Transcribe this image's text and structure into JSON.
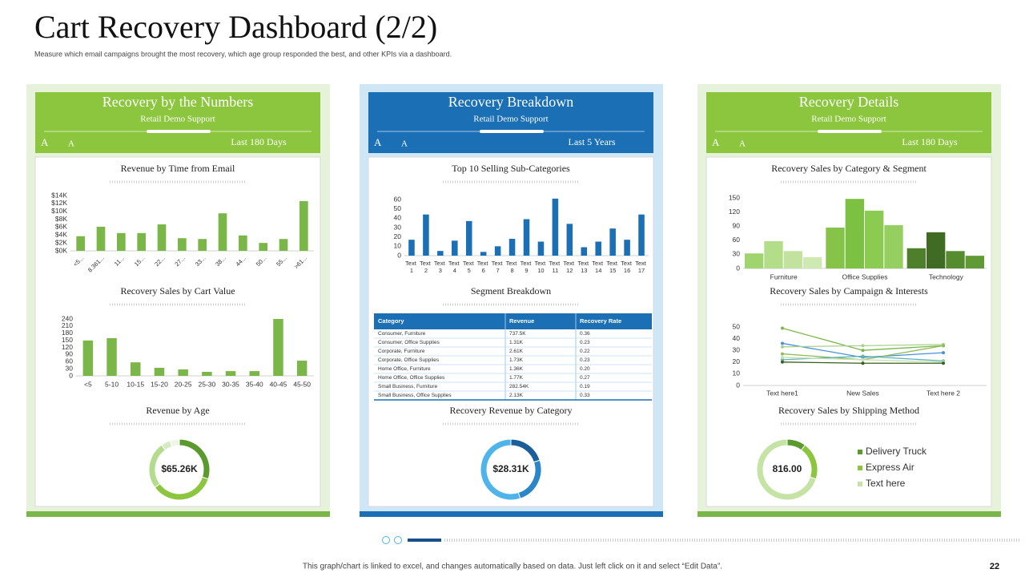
{
  "header": {
    "title": "Cart Recovery Dashboard (2/2)",
    "subtitle": "Measure which email campaigns brought the most recovery, which age group responded the best, and other KPIs  via a dashboard."
  },
  "panels": [
    {
      "title": "Recovery by the Numbers",
      "subtitle": "Retail Demo Support",
      "period": "Last 180 Days",
      "icons": [
        "A",
        "A"
      ]
    },
    {
      "title": "Recovery Breakdown",
      "subtitle": "Retail Demo Support",
      "period": "Last 5 Years",
      "icons": [
        "A",
        "A"
      ]
    },
    {
      "title": "Recovery Details",
      "subtitle": "Retail Demo Support",
      "period": "Last 180 Days",
      "icons": [
        "A",
        "A"
      ]
    }
  ],
  "chart_data": [
    {
      "type": "bar",
      "title": "Revenue  by Time from Email",
      "categories": [
        "<5...",
        "8.361...",
        "11...",
        "15...",
        "22...",
        "27...",
        "33...",
        "38...",
        "44...",
        "50...",
        "55...",
        ">61..."
      ],
      "values": [
        3.7,
        6.1,
        4.5,
        4.5,
        6.7,
        3.2,
        3.0,
        9.5,
        3.9,
        2.0,
        3.0,
        12.6
      ],
      "color": "#7ab648",
      "ylim": [
        0,
        14
      ],
      "yticks": [
        {
          "value": 0,
          "label": "$0K"
        },
        {
          "value": 2,
          "label": "$2K"
        },
        {
          "value": 4,
          "label": "$4K"
        },
        {
          "value": 6,
          "label": "$6K"
        },
        {
          "value": 8,
          "label": "$8K"
        },
        {
          "value": 10,
          "label": "$10K"
        },
        {
          "value": 12,
          "label": "$12K"
        },
        {
          "value": 14,
          "label": "$14K"
        }
      ]
    },
    {
      "type": "bar",
      "title": "Recovery  Sales  by Cart Value",
      "categories": [
        "<5",
        "5-10",
        "10-15",
        "15-20",
        "20-25",
        "25-30",
        "30-35",
        "35-40",
        "40-45",
        "45-50"
      ],
      "values": [
        149,
        159,
        57,
        34,
        27,
        17,
        20,
        20,
        240,
        64
      ],
      "color": "#7ab648",
      "ylim": [
        0,
        240
      ],
      "yticks": [
        0,
        30,
        60,
        90,
        120,
        150,
        180,
        210,
        240
      ]
    },
    {
      "type": "donut",
      "title": "Revenue  by Age",
      "center_label": "$65.26K",
      "values": [
        30,
        35,
        25,
        5,
        5
      ],
      "colors": [
        "#5a9a2e",
        "#8cc63f",
        "#b5db8e",
        "#d6ebc2",
        "#eef6e6"
      ]
    },
    {
      "type": "bar",
      "title": "Top 10 Selling Sub-Categories",
      "categories": [
        "Text 1",
        "Text 2",
        "Text 3",
        "Text 4",
        "Text 5",
        "Text 6",
        "Text 7",
        "Text 8",
        "Text 9",
        "Text 10",
        "Text 11",
        "Text 12",
        "Text 13",
        "Text 14",
        "Text 15",
        "Text 16",
        "Text 17"
      ],
      "values": [
        17,
        44,
        5,
        16,
        37,
        4,
        10,
        18,
        39,
        15,
        61,
        34,
        9,
        15,
        29,
        17,
        44
      ],
      "color": "#1a6fb5",
      "ylim": [
        0,
        60
      ],
      "yticks": [
        0,
        10,
        20,
        30,
        40,
        50,
        60
      ]
    },
    {
      "type": "table",
      "title": "Segment Breakdown",
      "columns": [
        "Category",
        "Revenue",
        "Recovery Rate"
      ],
      "rows": [
        [
          "Consumer, Furniture",
          "737.5K",
          "0.36"
        ],
        [
          "Consumer, Office Supplies",
          "1.31K",
          "0.23"
        ],
        [
          "Corporate, Furniture",
          "2.61K",
          "0.22"
        ],
        [
          "Corporate, Office Supplies",
          "1.73K",
          "0.23"
        ],
        [
          "Home Office, Furniture",
          "1.36K",
          "0.20"
        ],
        [
          "Home Office, Office Supplies",
          "1.77K",
          "0.27"
        ],
        [
          "Small Business, Furniture",
          "282.54K",
          "0.19"
        ],
        [
          "Small Business, Office Supplies",
          "2.13K",
          "0.33"
        ]
      ]
    },
    {
      "type": "donut",
      "title": "Recovery  Revenue  by Category",
      "center_label": "$28.31K",
      "values": [
        20,
        25,
        55
      ],
      "colors": [
        "#1b5e9a",
        "#2a86c9",
        "#4fb4ea"
      ]
    },
    {
      "type": "grouped_bar",
      "title": "Recovery  Sales  by Category  & Segment",
      "categories": [
        "Furniture",
        "Office Supplies",
        "Technology"
      ],
      "values": [
        [
          32,
          58,
          37,
          24
        ],
        [
          87,
          148,
          123,
          92
        ],
        [
          43,
          77,
          37,
          27
        ]
      ],
      "colors": [
        [
          "#9fd46e",
          "#b3dd88",
          "#c2e39e",
          "#cfe9b3"
        ],
        [
          "#86c449",
          "#7dc142",
          "#8ccb52",
          "#95cf5f"
        ],
        [
          "#4e7f2a",
          "#3f6b22",
          "#548c2f",
          "#5f9a35"
        ]
      ],
      "ylim": [
        0,
        150
      ],
      "yticks": [
        0,
        30,
        60,
        90,
        120,
        150
      ]
    },
    {
      "type": "line",
      "title": "Recovery  Sales  by Campaign  & Interests",
      "categories": [
        "Text here1",
        "New Sales",
        "Text here 2"
      ],
      "series": [
        {
          "color": "#7ab648",
          "values": [
            49,
            30,
            34
          ]
        },
        {
          "color": "#4a90d9",
          "values": [
            36,
            24,
            28
          ]
        },
        {
          "color": "#a9d18e",
          "values": [
            33,
            34,
            35
          ]
        },
        {
          "color": "#8fbc5a",
          "values": [
            27,
            22,
            34
          ]
        },
        {
          "color": "#5fb3b3",
          "values": [
            22,
            25,
            21
          ]
        },
        {
          "color": "#c5e0b4",
          "values": [
            24,
            22,
            20
          ]
        },
        {
          "color": "#3a5f1e",
          "values": [
            20,
            19,
            19
          ]
        }
      ],
      "ylim": [
        0,
        50
      ],
      "yticks": [
        0,
        10,
        20,
        30,
        40,
        50
      ]
    },
    {
      "type": "donut",
      "title": "Recovery  Sales  by Shipping Method",
      "center_label": "816.00",
      "categories": [
        "Delivery Truck",
        "Express Air",
        "Text here"
      ],
      "values": [
        10,
        20,
        70
      ],
      "colors": [
        "#5a9a2e",
        "#8cc63f",
        "#c5e3a5"
      ]
    }
  ],
  "footer": {
    "note": "This graph/chart is linked to excel, and changes automatically based on data. Just left click on it and select “Edit Data”.",
    "page": "22"
  }
}
